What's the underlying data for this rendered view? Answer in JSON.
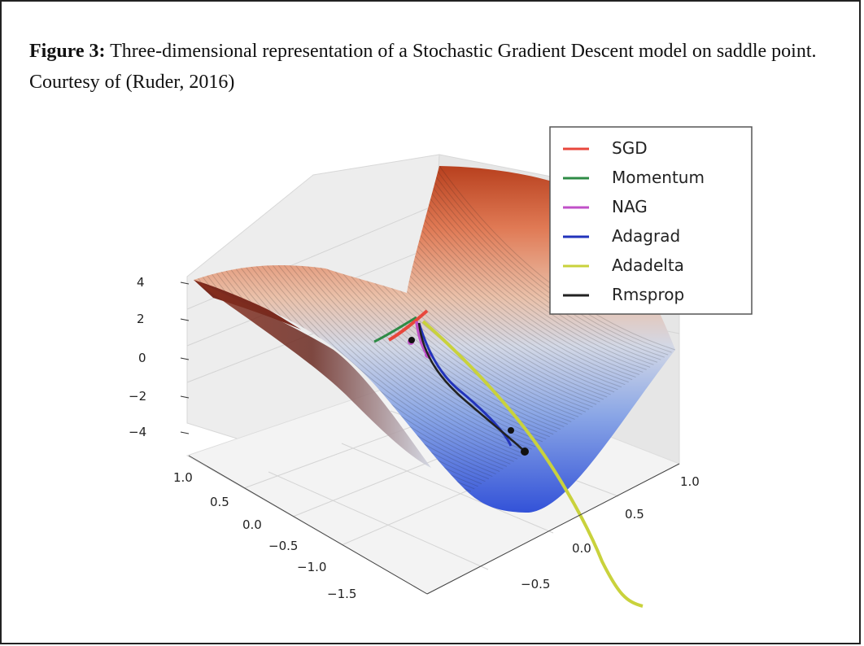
{
  "caption": {
    "label": "Figure 3:",
    "text": " Three-dimensional representation of a Stochastic Gradient Descent model on saddle point. Courtesy of (Ruder, 2016)"
  },
  "chart_data": {
    "type": "line",
    "surface": "saddle",
    "zticks": [
      "4",
      "2",
      "0",
      "−2",
      "−4"
    ],
    "xticks": [
      "1.0",
      "0.5",
      "0.0",
      "−0.5",
      "−1.0",
      "−1.5"
    ],
    "yticks": [
      "1.0",
      "0.5",
      "0.0",
      "−0.5"
    ],
    "grid": true,
    "legend_position": "top-right",
    "series": [
      {
        "name": "SGD",
        "color": "#e8473c"
      },
      {
        "name": "Momentum",
        "color": "#2e8b46"
      },
      {
        "name": "NAG",
        "color": "#c050c8"
      },
      {
        "name": "Adagrad",
        "color": "#2233bb"
      },
      {
        "name": "Adadelta",
        "color": "#c9d23c"
      },
      {
        "name": "Rmsprop",
        "color": "#222222"
      }
    ]
  }
}
